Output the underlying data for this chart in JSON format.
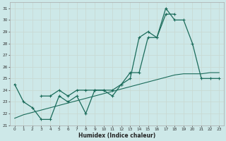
{
  "xlabel": "Humidex (Indice chaleur)",
  "bg_color": "#cde8e8",
  "grid_color": "#b8d8d8",
  "line_color": "#1a6b5a",
  "xlim": [
    -0.5,
    23.5
  ],
  "ylim": [
    21,
    31.5
  ],
  "yticks": [
    21,
    22,
    23,
    24,
    25,
    26,
    27,
    28,
    29,
    30,
    31
  ],
  "xticks": [
    0,
    1,
    2,
    3,
    4,
    5,
    6,
    7,
    8,
    9,
    10,
    11,
    12,
    13,
    14,
    15,
    16,
    17,
    18,
    19,
    20,
    21,
    22,
    23
  ],
  "series1_x": [
    0,
    1,
    2,
    3,
    4,
    5,
    6,
    7,
    8,
    9,
    10,
    11,
    12,
    13,
    14,
    15,
    16,
    17,
    18,
    19,
    20,
    21,
    22,
    23
  ],
  "series1_y": [
    24.5,
    23.0,
    22.5,
    21.5,
    21.5,
    23.5,
    23.0,
    23.5,
    22.0,
    24.0,
    24.0,
    23.5,
    24.5,
    25.5,
    25.5,
    28.5,
    28.5,
    31.0,
    30.0,
    30.0,
    28.0,
    25.0,
    25.0,
    25.0
  ],
  "series2_x": [
    3,
    4,
    5,
    6,
    7,
    8,
    9,
    10,
    11,
    12,
    13,
    14,
    15,
    16,
    17,
    18
  ],
  "series2_y": [
    23.5,
    23.5,
    24.0,
    23.5,
    24.0,
    24.0,
    24.0,
    24.0,
    24.0,
    24.5,
    25.0,
    28.5,
    29.0,
    28.5,
    30.5,
    30.5
  ],
  "series3_x": [
    0,
    1,
    2,
    3,
    4,
    5,
    6,
    7,
    8,
    9,
    10,
    11,
    12,
    13,
    14,
    15,
    16,
    17,
    18,
    19,
    20,
    21,
    22,
    23
  ],
  "series3_y": [
    21.6,
    21.9,
    22.1,
    22.3,
    22.5,
    22.7,
    22.9,
    23.1,
    23.3,
    23.5,
    23.7,
    23.9,
    24.1,
    24.3,
    24.5,
    24.7,
    24.9,
    25.1,
    25.3,
    25.4,
    25.4,
    25.4,
    25.5,
    25.5
  ]
}
